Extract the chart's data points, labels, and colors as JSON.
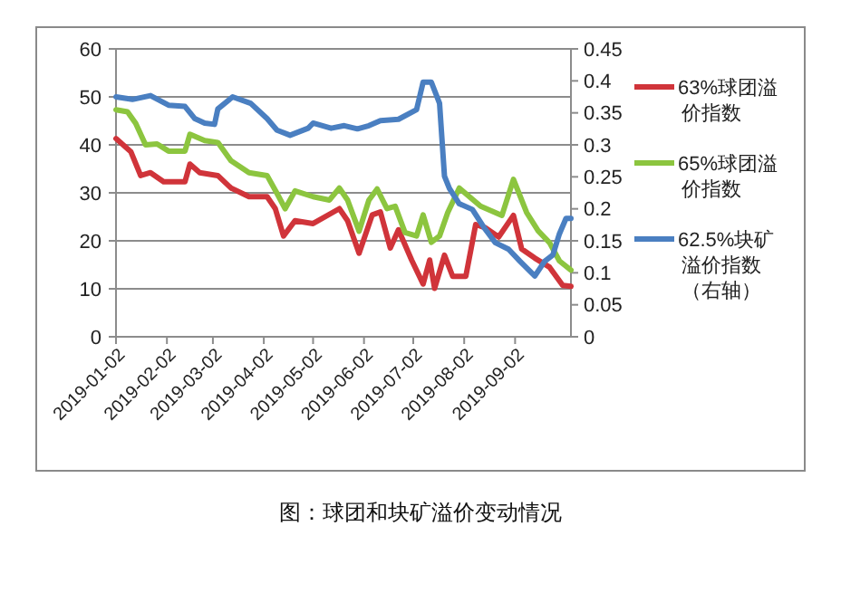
{
  "chart_data": {
    "type": "line",
    "title": "图：球团和块矿溢价变动情况",
    "xlim": [
      "2019-01-02",
      "2019-10-06"
    ],
    "xticks": [
      "2019-01-02",
      "2019-02-02",
      "2019-03-02",
      "2019-04-02",
      "2019-05-02",
      "2019-06-02",
      "2019-07-02",
      "2019-08-02",
      "2019-09-02"
    ],
    "ylim": [
      0,
      60
    ],
    "yticks": [
      0,
      10,
      20,
      30,
      40,
      50,
      60
    ],
    "y2lim": [
      0,
      0.45
    ],
    "y2ticks": [
      0,
      0.05,
      0.1,
      0.15,
      0.2,
      0.25,
      0.3,
      0.35,
      0.4,
      0.45
    ],
    "grid": "y",
    "legend": "right",
    "marker": "none",
    "line_style": "solid",
    "series": [
      {
        "name": "63%球团溢价指数",
        "color": "#d0343a",
        "x": [
          "2019-01-02",
          "2019-01-11",
          "2019-01-17",
          "2019-01-23",
          "2019-01-31",
          "2019-02-13",
          "2019-02-16",
          "2019-02-22",
          "2019-03-05",
          "2019-03-13",
          "2019-03-24",
          "2019-04-04",
          "2019-04-09",
          "2019-04-14",
          "2019-04-21",
          "2019-05-02",
          "2019-05-18",
          "2019-05-23",
          "2019-05-30",
          "2019-06-07",
          "2019-06-12",
          "2019-06-18",
          "2019-06-23",
          "2019-07-01",
          "2019-07-08",
          "2019-07-12",
          "2019-07-15",
          "2019-07-21",
          "2019-07-26",
          "2019-08-03",
          "2019-08-09",
          "2019-08-15",
          "2019-08-23",
          "2019-09-01",
          "2019-09-06",
          "2019-09-14",
          "2019-09-23",
          "2019-10-01",
          "2019-10-06"
        ],
        "values": [
          41.3,
          38.6,
          33.6,
          34.2,
          32.3,
          32.3,
          36,
          34.2,
          33.6,
          31,
          29.2,
          29.2,
          26.7,
          21,
          24.2,
          23.6,
          26.7,
          24.2,
          17.4,
          25.4,
          26,
          18.5,
          22.3,
          16,
          11,
          16,
          10.1,
          17,
          12.6,
          12.6,
          23.4,
          22.7,
          20.8,
          25.3,
          18.3,
          16.4,
          14.5,
          10.7,
          10.5
        ]
      },
      {
        "name": "65%球团溢价指数",
        "color": "#8cc53f",
        "x": [
          "2019-01-02",
          "2019-01-09",
          "2019-01-14",
          "2019-01-20",
          "2019-01-27",
          "2019-02-03",
          "2019-02-13",
          "2019-02-16",
          "2019-02-25",
          "2019-03-05",
          "2019-03-13",
          "2019-03-24",
          "2019-04-04",
          "2019-04-10",
          "2019-04-15",
          "2019-04-21",
          "2019-05-02",
          "2019-05-12",
          "2019-05-18",
          "2019-05-23",
          "2019-05-30",
          "2019-06-05",
          "2019-06-10",
          "2019-06-16",
          "2019-06-21",
          "2019-06-27",
          "2019-07-04",
          "2019-07-08",
          "2019-07-13",
          "2019-07-18",
          "2019-07-23",
          "2019-07-30",
          "2019-08-12",
          "2019-08-25",
          "2019-09-01",
          "2019-09-09",
          "2019-09-16",
          "2019-09-23",
          "2019-09-29",
          "2019-10-06"
        ],
        "values": [
          47.3,
          46.9,
          44.5,
          40,
          40.2,
          38.7,
          38.7,
          42.2,
          40.9,
          40.5,
          36.7,
          34.2,
          33.6,
          29.9,
          26.7,
          30.4,
          29.2,
          28.5,
          31,
          28.5,
          22,
          28.5,
          30.8,
          26.7,
          27.2,
          21.7,
          21,
          25.4,
          19.7,
          21,
          25.9,
          31,
          27.2,
          25.3,
          32.8,
          25.9,
          22.1,
          19.6,
          15.8,
          13.9
        ]
      },
      {
        "name": "62.5%块矿溢价指数（右轴）",
        "color": "#4a7fc1",
        "axis": "y2",
        "x": [
          "2019-01-02",
          "2019-01-12",
          "2019-01-23",
          "2019-02-03",
          "2019-02-13",
          "2019-02-19",
          "2019-02-25",
          "2019-03-03",
          "2019-03-05",
          "2019-03-14",
          "2019-03-25",
          "2019-04-04",
          "2019-04-10",
          "2019-04-18",
          "2019-04-29",
          "2019-05-02",
          "2019-05-13",
          "2019-05-21",
          "2019-05-29",
          "2019-06-05",
          "2019-06-12",
          "2019-06-23",
          "2019-07-04",
          "2019-07-08",
          "2019-07-13",
          "2019-07-18",
          "2019-07-21",
          "2019-07-24",
          "2019-07-30",
          "2019-08-07",
          "2019-08-14",
          "2019-08-21",
          "2019-08-29",
          "2019-09-05",
          "2019-09-14",
          "2019-09-20",
          "2019-09-25",
          "2019-09-29",
          "2019-10-03",
          "2019-10-06"
        ],
        "values": [
          0.375,
          0.371,
          0.377,
          0.362,
          0.36,
          0.341,
          0.334,
          0.332,
          0.356,
          0.375,
          0.365,
          0.341,
          0.323,
          0.315,
          0.326,
          0.334,
          0.326,
          0.33,
          0.325,
          0.33,
          0.338,
          0.34,
          0.355,
          0.398,
          0.398,
          0.365,
          0.251,
          0.232,
          0.208,
          0.199,
          0.171,
          0.147,
          0.137,
          0.118,
          0.095,
          0.118,
          0.128,
          0.161,
          0.185,
          0.185
        ]
      }
    ]
  }
}
